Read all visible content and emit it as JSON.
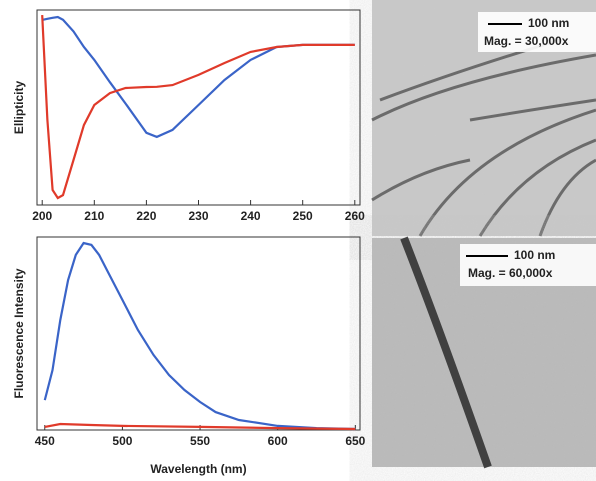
{
  "chart_data": [
    {
      "type": "line",
      "y_label": "Ellipticity",
      "xlim": [
        199,
        261
      ],
      "xticks": [
        200,
        210,
        220,
        230,
        240,
        250,
        260
      ],
      "ylim": [
        0,
        100
      ],
      "x": [
        200,
        201,
        202,
        203,
        204,
        206,
        208,
        210,
        213,
        216,
        220,
        222,
        225,
        230,
        235,
        240,
        245,
        250,
        255,
        260
      ],
      "series": [
        {
          "color": "#3a64c8",
          "values": [
            94.9,
            95.5,
            96,
            96.4,
            95,
            89,
            81,
            74.4,
            63,
            52,
            37,
            34.9,
            38.5,
            51.3,
            64.1,
            74.4,
            81,
            82.1,
            82.1,
            82.1
          ]
        },
        {
          "color": "#e03a2a",
          "values": [
            97.4,
            43.6,
            7.7,
            3.6,
            5.1,
            23.1,
            41,
            51.3,
            57.4,
            60,
            60.5,
            60.6,
            61.5,
            66.7,
            72.8,
            78.5,
            81,
            82.1,
            82.1,
            82.1
          ]
        }
      ]
    },
    {
      "type": "line",
      "y_label": "Fluorescence Intensity",
      "x_label": "Wavelength (nm)",
      "xlim": [
        445,
        653
      ],
      "xticks": [
        450,
        500,
        550,
        600,
        650
      ],
      "ylim": [
        0,
        100
      ],
      "series": [
        {
          "color": "#3a64c8",
          "x": [
            450,
            455,
            460,
            465,
            470,
            475,
            480,
            485,
            490,
            500,
            510,
            520,
            530,
            540,
            550,
            560,
            575,
            600,
            625,
            650
          ],
          "values": [
            15.5,
            31,
            57,
            77.7,
            90.7,
            96.9,
            95.9,
            90.7,
            82.9,
            67.4,
            51.8,
            38.9,
            28.5,
            20.7,
            14.5,
            9.3,
            5.2,
            2.1,
            1,
            0.5
          ]
        },
        {
          "color": "#e03a2a",
          "x": [
            450,
            460,
            480,
            500,
            550,
            600,
            650
          ],
          "values": [
            1.6,
            3.1,
            2.6,
            2.1,
            1.6,
            1,
            0.5
          ]
        }
      ]
    }
  ],
  "images": [
    {
      "scale_bar": "100 nm",
      "magnification": "Mag. = 30,000x"
    },
    {
      "scale_bar": "100 nm",
      "magnification": "Mag. = 60,000x"
    }
  ]
}
